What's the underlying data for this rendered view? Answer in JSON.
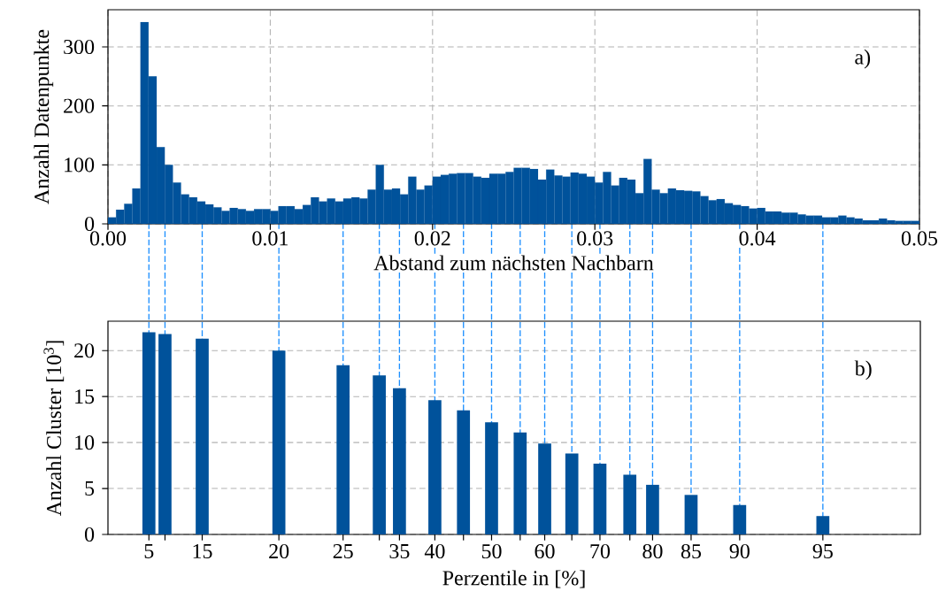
{
  "chart_data": [
    {
      "type": "histogram",
      "xlabel": "Abstand zum nächsten Nachbarn",
      "ylabel": "Anzahl Datenpunkte",
      "annotations": [
        "a)"
      ],
      "color": "#00529b",
      "bins": [
        0,
        0.0005,
        0.001,
        0.0015,
        0.002,
        0.0025,
        0.003,
        0.0035,
        0.004,
        0.0045,
        0.005,
        0.0055,
        0.006,
        0.0065,
        0.007,
        0.0075,
        0.008,
        0.0085,
        0.009,
        0.0095,
        0.01,
        0.0105,
        0.011,
        0.0115,
        0.012,
        0.0125,
        0.013,
        0.0135,
        0.014,
        0.0145,
        0.015,
        0.0155,
        0.016,
        0.0165,
        0.017,
        0.0175,
        0.018,
        0.0185,
        0.019,
        0.0195,
        0.02,
        0.0205,
        0.021,
        0.0215,
        0.022,
        0.0225,
        0.023,
        0.0235,
        0.024,
        0.0245,
        0.025,
        0.0255,
        0.026,
        0.0265,
        0.027,
        0.0275,
        0.028,
        0.0285,
        0.029,
        0.0295,
        0.03,
        0.0305,
        0.031,
        0.0315,
        0.032,
        0.0325,
        0.033,
        0.0335,
        0.034,
        0.0345,
        0.035,
        0.0355,
        0.036,
        0.0365,
        0.037,
        0.0375,
        0.038,
        0.0385,
        0.039,
        0.0395,
        0.04,
        0.0405,
        0.041,
        0.0415,
        0.042,
        0.0425,
        0.043,
        0.0435,
        0.044,
        0.0445,
        0.045,
        0.0455,
        0.046,
        0.0465,
        0.047,
        0.0475,
        0.048,
        0.0485,
        0.049,
        0.0495,
        0.05
      ],
      "values": [
        11,
        24,
        34,
        60,
        342,
        250,
        130,
        100,
        70,
        50,
        45,
        38,
        33,
        28,
        22,
        27,
        25,
        22,
        25,
        25,
        22,
        30,
        30,
        25,
        32,
        45,
        38,
        43,
        38,
        43,
        45,
        43,
        58,
        100,
        58,
        60,
        50,
        80,
        58,
        65,
        80,
        83,
        85,
        86,
        86,
        80,
        78,
        85,
        85,
        88,
        95,
        95,
        93,
        75,
        92,
        82,
        80,
        87,
        85,
        80,
        70,
        88,
        65,
        78,
        75,
        52,
        110,
        58,
        52,
        60,
        57,
        56,
        55,
        47,
        40,
        42,
        35,
        32,
        30,
        26,
        27,
        21,
        21,
        19,
        19,
        16,
        14,
        14,
        11,
        11,
        14,
        11,
        9,
        6,
        6,
        9,
        6,
        5,
        5,
        5
      ],
      "xlim": [
        0,
        0.05
      ],
      "xticks": [
        {
          "value": 0,
          "label": "0.00"
        },
        0.01,
        0.02,
        0.03,
        0.04,
        0.05
      ],
      "ylim": [
        0,
        363
      ],
      "yticks": [
        0,
        100,
        200,
        300
      ],
      "grid": true
    },
    {
      "type": "bar",
      "xlabel": "Perzentile in [%]",
      "ylabel": "Anzahl Cluster [10$^{3}$]",
      "color": "#00529b",
      "x": [
        0.00252,
        0.00351,
        0.0058,
        0.01052,
        0.01447,
        0.0167,
        0.01794,
        0.02012,
        0.02188,
        0.02361,
        0.02537,
        0.02688,
        0.02855,
        0.03028,
        0.03212,
        0.03352,
        0.03589,
        0.03888,
        0.044
      ],
      "values": [
        22.0,
        21.8,
        21.3,
        20.0,
        18.4,
        17.3,
        15.9,
        14.6,
        13.5,
        12.2,
        11.1,
        9.9,
        8.8,
        7.7,
        6.5,
        5.4,
        4.3,
        3.2,
        2.0
      ],
      "xlim": [
        0,
        0.05
      ],
      "tick_labels": "y",
      "annotations": [
        "b)",
        {
          "text": "5",
          "x": 0.00252,
          "y": 0
        },
        {
          "text": "15",
          "x": 0.0058,
          "y": 0
        },
        {
          "text": "20",
          "x": 0.01052,
          "y": 0
        },
        {
          "text": "25",
          "x": 0.01447,
          "y": 0
        },
        {
          "text": "35",
          "x": 0.01794,
          "y": 0
        },
        {
          "text": "40",
          "x": 0.02012,
          "y": 0
        },
        {
          "text": "50",
          "x": 0.02361,
          "y": 0
        },
        {
          "text": "60",
          "x": 0.02688,
          "y": 0
        },
        {
          "text": "70",
          "x": 0.03028,
          "y": 0
        },
        {
          "text": "80",
          "x": 0.03352,
          "y": 0
        },
        {
          "text": "85",
          "x": 0.03589,
          "y": 0
        },
        {
          "text": "90",
          "x": 0.03888,
          "y": 0
        },
        {
          "text": "95",
          "x": 0.044,
          "y": 0
        }
      ],
      "ylim": [
        0,
        23.2
      ],
      "yticks": [
        0,
        5,
        10,
        15,
        20
      ],
      "grid": "y",
      "ref_lines": [
        {
          "axis": "x",
          "value": 0.00252,
          "color": "#1e90ff",
          "line_style": "dashed"
        },
        {
          "axis": "x",
          "value": 0.00351,
          "color": "#1e90ff",
          "line_style": "dashed"
        },
        {
          "axis": "x",
          "value": 0.0058,
          "color": "#1e90ff",
          "line_style": "dashed"
        },
        {
          "axis": "x",
          "value": 0.01052,
          "color": "#1e90ff",
          "line_style": "dashed"
        },
        {
          "axis": "x",
          "value": 0.01447,
          "color": "#1e90ff",
          "line_style": "dashed"
        },
        {
          "axis": "x",
          "value": 0.0167,
          "color": "#1e90ff",
          "line_style": "dashed"
        },
        {
          "axis": "x",
          "value": 0.01794,
          "color": "#1e90ff",
          "line_style": "dashed"
        },
        {
          "axis": "x",
          "value": 0.02012,
          "color": "#1e90ff",
          "line_style": "dashed"
        },
        {
          "axis": "x",
          "value": 0.02188,
          "color": "#1e90ff",
          "line_style": "dashed"
        },
        {
          "axis": "x",
          "value": 0.02361,
          "color": "#1e90ff",
          "line_style": "dashed"
        },
        {
          "axis": "x",
          "value": 0.02537,
          "color": "#1e90ff",
          "line_style": "dashed"
        },
        {
          "axis": "x",
          "value": 0.02688,
          "color": "#1e90ff",
          "line_style": "dashed"
        },
        {
          "axis": "x",
          "value": 0.02855,
          "color": "#1e90ff",
          "line_style": "dashed"
        },
        {
          "axis": "x",
          "value": 0.03028,
          "color": "#1e90ff",
          "line_style": "dashed"
        },
        {
          "axis": "x",
          "value": 0.03212,
          "color": "#1e90ff",
          "line_style": "dashed"
        },
        {
          "axis": "x",
          "value": 0.03352,
          "color": "#1e90ff",
          "line_style": "dashed"
        },
        {
          "axis": "x",
          "value": 0.03589,
          "color": "#1e90ff",
          "line_style": "dashed"
        },
        {
          "axis": "x",
          "value": 0.03888,
          "color": "#1e90ff",
          "line_style": "dashed"
        },
        {
          "axis": "x",
          "value": 0.044,
          "color": "#1e90ff",
          "line_style": "dashed"
        }
      ]
    }
  ]
}
